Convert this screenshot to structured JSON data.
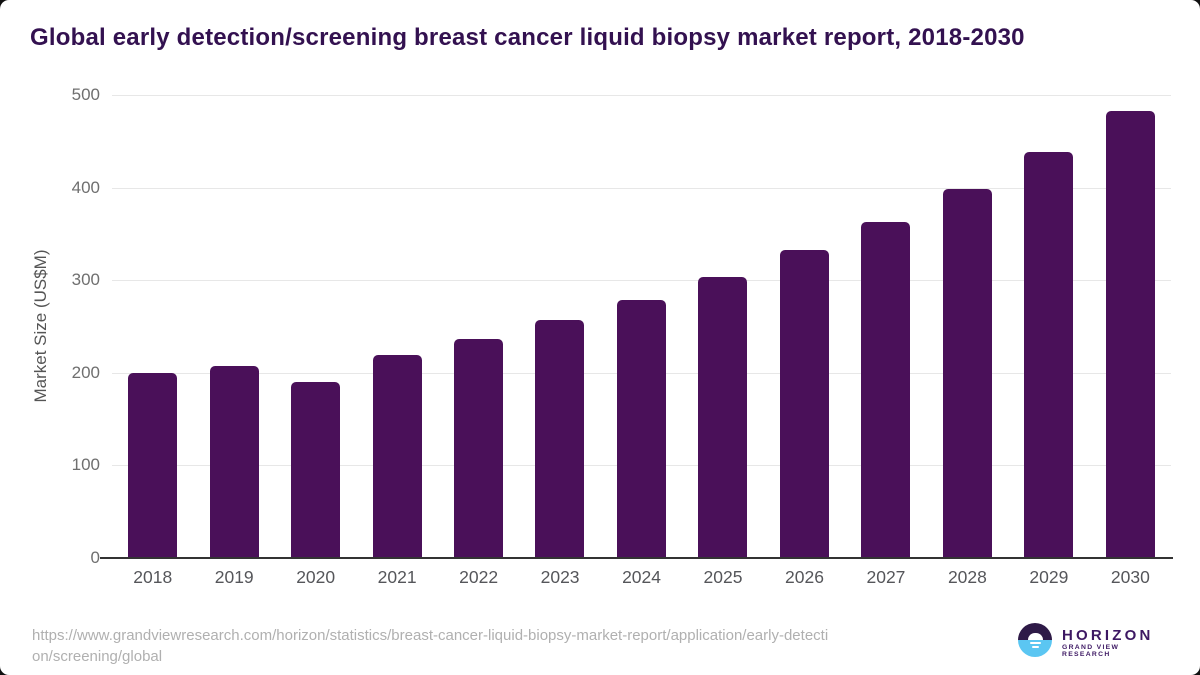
{
  "title": "Global early detection/screening breast cancer liquid biopsy market report, 2018-2030",
  "chart_data": {
    "type": "bar",
    "title": "Global early detection/screening breast cancer liquid biopsy market report, 2018-2030",
    "categories": [
      "2018",
      "2019",
      "2020",
      "2021",
      "2022",
      "2023",
      "2024",
      "2025",
      "2026",
      "2027",
      "2028",
      "2029",
      "2030"
    ],
    "values": [
      200,
      207,
      190,
      219,
      237,
      257,
      279,
      304,
      333,
      363,
      398,
      438,
      483
    ],
    "xlabel": "",
    "ylabel": "Market Size (US$M)",
    "ylim": [
      0,
      500
    ],
    "yticks": [
      0,
      100,
      200,
      300,
      400,
      500
    ],
    "grid": "horizontal gridlines on",
    "legend": "none",
    "bar_color": "#4a1059"
  },
  "footer": {
    "source_url": "https://www.grandviewresearch.com/horizon/statistics/breast-cancer-liquid-biopsy-market-report/application/early-detection/screening/global"
  },
  "logo": {
    "brand": "HORIZON",
    "subbrand": "GRAND VIEW RESEARCH"
  },
  "colors": {
    "bar": "#4a1059",
    "title": "#331150",
    "axis_line": "#333333",
    "gridline": "#e7e7e7",
    "y_tick_label": "#6f6f6f",
    "x_tick_label": "#55565a",
    "url_text": "#b0b0b0",
    "logo_purple": "#2e1a47",
    "logo_blue": "#5bc6f2",
    "logo_text": "#3d1863"
  }
}
